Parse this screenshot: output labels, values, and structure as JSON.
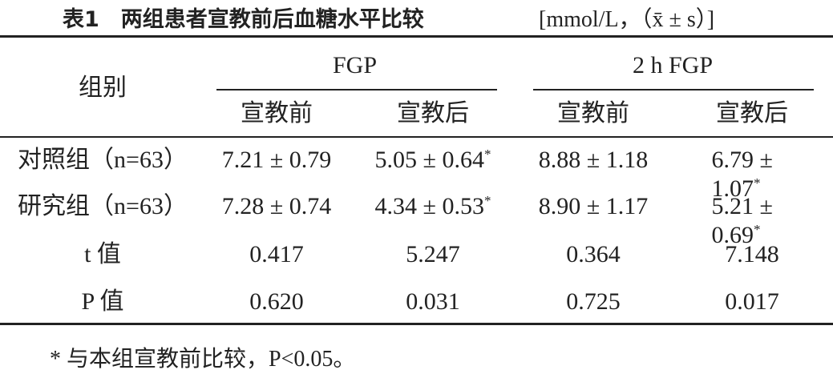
{
  "header": {
    "title": "表1　两组患者宣教前后血糖水平比较",
    "unit": "[mmol/L，（x̄ ± s）]"
  },
  "table": {
    "corner": "组别",
    "groups": [
      {
        "name": "FGP",
        "subcolumns": [
          "宣教前",
          "宣教后"
        ]
      },
      {
        "name": "2 h FGP",
        "subcolumns": [
          "宣教前",
          "宣教后"
        ]
      }
    ],
    "rows": [
      {
        "label": "对照组（n=63）",
        "cells": [
          {
            "text": "7.21 ± 0.79"
          },
          {
            "text": "5.05 ± 0.64",
            "note": "*"
          },
          {
            "text": "8.88 ± 1.18"
          },
          {
            "text": "6.79 ± 1.07",
            "note": "*"
          }
        ]
      },
      {
        "label": "研究组（n=63）",
        "cells": [
          {
            "text": "7.28 ± 0.74"
          },
          {
            "text": "4.34 ± 0.53",
            "note": "*"
          },
          {
            "text": "8.90 ± 1.17"
          },
          {
            "text": "5.21 ± 0.69",
            "note": "*"
          }
        ]
      },
      {
        "label": "t 值",
        "cells": [
          {
            "text": "0.417"
          },
          {
            "text": "5.247"
          },
          {
            "text": "0.364"
          },
          {
            "text": "7.148"
          }
        ]
      },
      {
        "label": "P 值",
        "cells": [
          {
            "text": "0.620"
          },
          {
            "text": "0.031"
          },
          {
            "text": "0.725"
          },
          {
            "text": "0.017"
          }
        ]
      }
    ]
  },
  "footnote": "* 与本组宣教前比较，P<0.05。"
}
